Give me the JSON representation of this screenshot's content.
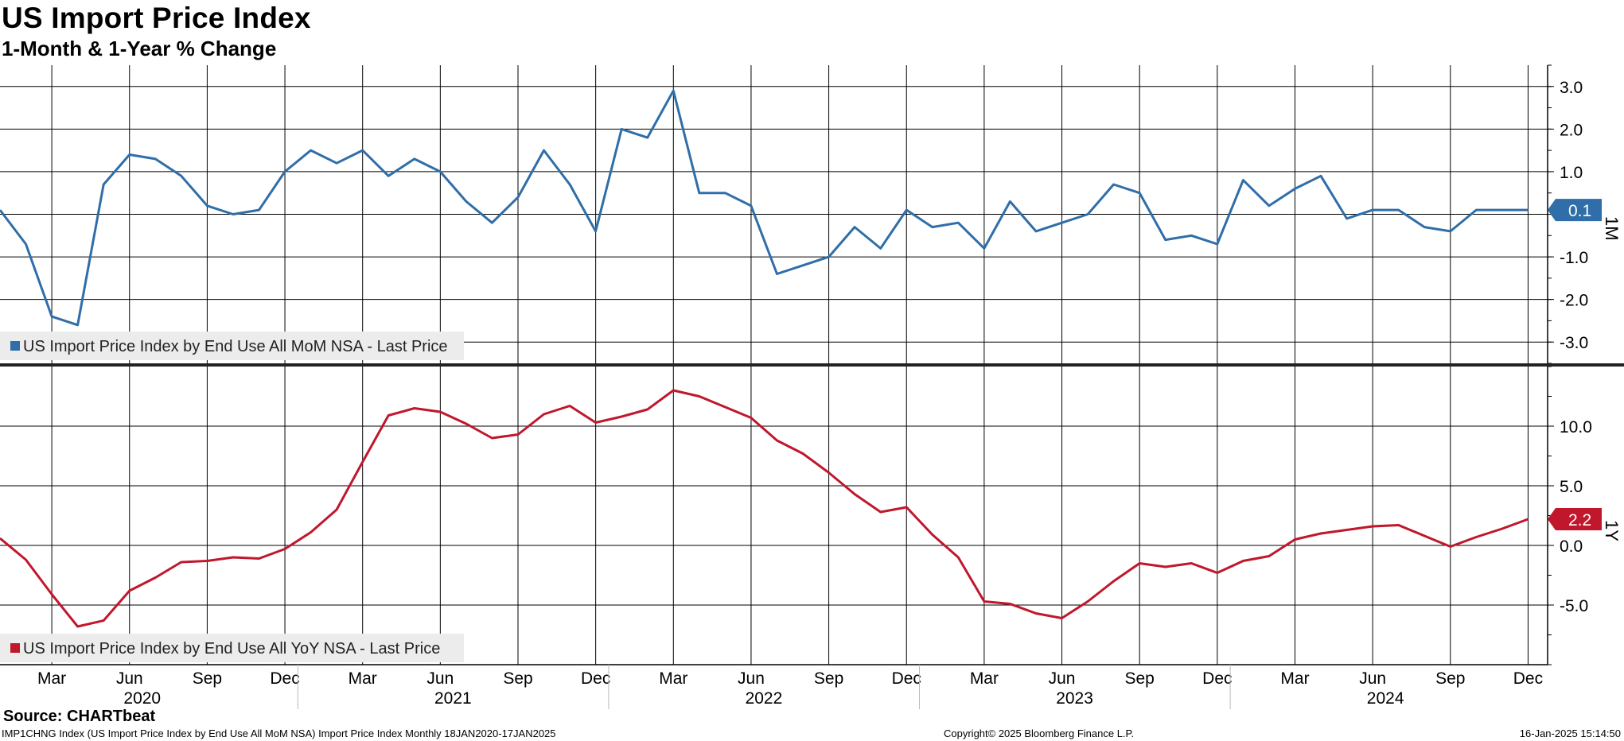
{
  "header": {
    "title": "US Import Price Index",
    "subtitle": "1-Month & 1-Year % Change"
  },
  "footer": {
    "source": "Source: CHARTbeat",
    "ticker_line": "IMP1CHNG Index (US Import Price Index by End Use All MoM NSA) Import Price Index  Monthly 18JAN2020-17JAN2025",
    "copyright": "Copyright© 2025 Bloomberg Finance L.P.",
    "timestamp": "16-Jan-2025 15:14:50"
  },
  "colors": {
    "mom": "#2f6ea8",
    "yoy": "#c0172d",
    "grid": "#000000",
    "legend_bg": "#ececec"
  },
  "chart_data": [
    {
      "type": "line",
      "panel": "top",
      "x": [
        "2020-01",
        "2020-02",
        "2020-03",
        "2020-04",
        "2020-05",
        "2020-06",
        "2020-07",
        "2020-08",
        "2020-09",
        "2020-10",
        "2020-11",
        "2020-12",
        "2021-01",
        "2021-02",
        "2021-03",
        "2021-04",
        "2021-05",
        "2021-06",
        "2021-07",
        "2021-08",
        "2021-09",
        "2021-10",
        "2021-11",
        "2021-12",
        "2022-01",
        "2022-02",
        "2022-03",
        "2022-04",
        "2022-05",
        "2022-06",
        "2022-07",
        "2022-08",
        "2022-09",
        "2022-10",
        "2022-11",
        "2022-12",
        "2023-01",
        "2023-02",
        "2023-03",
        "2023-04",
        "2023-05",
        "2023-06",
        "2023-07",
        "2023-08",
        "2023-09",
        "2023-10",
        "2023-11",
        "2023-12",
        "2024-01",
        "2024-02",
        "2024-03",
        "2024-04",
        "2024-05",
        "2024-06",
        "2024-07",
        "2024-08",
        "2024-09",
        "2024-10",
        "2024-11",
        "2024-12"
      ],
      "series": [
        {
          "name": "US Import Price Index by End Use All MoM NSA - Last Price",
          "values": [
            0.1,
            -0.7,
            -2.4,
            -2.6,
            0.7,
            1.4,
            1.3,
            0.9,
            0.2,
            0.0,
            0.1,
            1.0,
            1.5,
            1.2,
            1.5,
            0.9,
            1.3,
            1.0,
            0.3,
            -0.2,
            0.4,
            1.5,
            0.7,
            -0.4,
            2.0,
            1.8,
            2.9,
            0.5,
            0.5,
            0.2,
            -1.4,
            -1.2,
            -1.0,
            -0.3,
            -0.8,
            0.1,
            -0.3,
            -0.2,
            -0.8,
            0.3,
            -0.4,
            -0.2,
            0.0,
            0.7,
            0.5,
            -0.6,
            -0.5,
            -0.7,
            0.8,
            0.2,
            0.6,
            0.9,
            -0.1,
            0.1,
            0.1,
            -0.3,
            -0.4,
            0.1,
            0.1,
            0.1
          ]
        }
      ],
      "ylim": [
        -3.5,
        3.5
      ],
      "yticks": [
        3,
        2,
        1,
        0,
        -1,
        -2,
        -3
      ],
      "ytick_labels": [
        "3.0",
        "2.0",
        "1.0",
        "",
        "-1.0",
        "-2.0",
        "-3.0"
      ],
      "last_value_label": "0.1",
      "axis_tag": "1M",
      "legend": "US Import Price Index by End Use All MoM NSA - Last Price",
      "grid": true
    },
    {
      "type": "line",
      "panel": "bottom",
      "x": [
        "2020-01",
        "2020-02",
        "2020-03",
        "2020-04",
        "2020-05",
        "2020-06",
        "2020-07",
        "2020-08",
        "2020-09",
        "2020-10",
        "2020-11",
        "2020-12",
        "2021-01",
        "2021-02",
        "2021-03",
        "2021-04",
        "2021-05",
        "2021-06",
        "2021-07",
        "2021-08",
        "2021-09",
        "2021-10",
        "2021-11",
        "2021-12",
        "2022-01",
        "2022-02",
        "2022-03",
        "2022-04",
        "2022-05",
        "2022-06",
        "2022-07",
        "2022-08",
        "2022-09",
        "2022-10",
        "2022-11",
        "2022-12",
        "2023-01",
        "2023-02",
        "2023-03",
        "2023-04",
        "2023-05",
        "2023-06",
        "2023-07",
        "2023-08",
        "2023-09",
        "2023-10",
        "2023-11",
        "2023-12",
        "2024-01",
        "2024-02",
        "2024-03",
        "2024-04",
        "2024-05",
        "2024-06",
        "2024-07",
        "2024-08",
        "2024-09",
        "2024-10",
        "2024-11",
        "2024-12"
      ],
      "series": [
        {
          "name": "US Import Price Index by End Use All YoY NSA - Last Price",
          "values": [
            0.6,
            -1.2,
            -4.1,
            -6.8,
            -6.3,
            -3.8,
            -2.7,
            -1.4,
            -1.3,
            -1.0,
            -1.1,
            -0.3,
            1.1,
            3.0,
            7.0,
            10.9,
            11.5,
            11.2,
            10.2,
            9.0,
            9.3,
            11.0,
            11.7,
            10.3,
            10.8,
            11.4,
            13.0,
            12.5,
            11.6,
            10.7,
            8.8,
            7.7,
            6.1,
            4.3,
            2.8,
            3.2,
            0.9,
            -1.0,
            -4.7,
            -4.9,
            -5.7,
            -6.1,
            -4.7,
            -3.0,
            -1.5,
            -1.8,
            -1.5,
            -2.3,
            -1.3,
            -0.9,
            0.5,
            1.0,
            1.3,
            1.6,
            1.7,
            0.8,
            -0.1,
            0.7,
            1.4,
            2.2
          ]
        }
      ],
      "ylim": [
        -10,
        15
      ],
      "yticks": [
        10,
        5,
        0,
        -5
      ],
      "ytick_labels": [
        "10.0",
        "5.0",
        "0.0",
        "-5.0"
      ],
      "last_value_label": "2.2",
      "axis_tag": "1Y",
      "legend": "US Import Price Index by End Use All YoY NSA - Last Price",
      "grid": true
    }
  ],
  "x_axis": {
    "month_ticks": [
      {
        "label": "Mar",
        "date": "2020-03"
      },
      {
        "label": "Jun",
        "date": "2020-06"
      },
      {
        "label": "Sep",
        "date": "2020-09"
      },
      {
        "label": "Dec",
        "date": "2020-12"
      },
      {
        "label": "Mar",
        "date": "2021-03"
      },
      {
        "label": "Jun",
        "date": "2021-06"
      },
      {
        "label": "Sep",
        "date": "2021-09"
      },
      {
        "label": "Dec",
        "date": "2021-12"
      },
      {
        "label": "Mar",
        "date": "2022-03"
      },
      {
        "label": "Jun",
        "date": "2022-06"
      },
      {
        "label": "Sep",
        "date": "2022-09"
      },
      {
        "label": "Dec",
        "date": "2022-12"
      },
      {
        "label": "Mar",
        "date": "2023-03"
      },
      {
        "label": "Jun",
        "date": "2023-06"
      },
      {
        "label": "Sep",
        "date": "2023-09"
      },
      {
        "label": "Dec",
        "date": "2023-12"
      },
      {
        "label": "Mar",
        "date": "2024-03"
      },
      {
        "label": "Jun",
        "date": "2024-06"
      },
      {
        "label": "Sep",
        "date": "2024-09"
      },
      {
        "label": "Dec",
        "date": "2024-12"
      }
    ],
    "year_labels": [
      {
        "label": "2020",
        "date": "2020-06"
      },
      {
        "label": "2021",
        "date": "2021-06"
      },
      {
        "label": "2022",
        "date": "2022-06"
      },
      {
        "label": "2023",
        "date": "2023-06"
      },
      {
        "label": "2024",
        "date": "2024-06"
      }
    ]
  }
}
